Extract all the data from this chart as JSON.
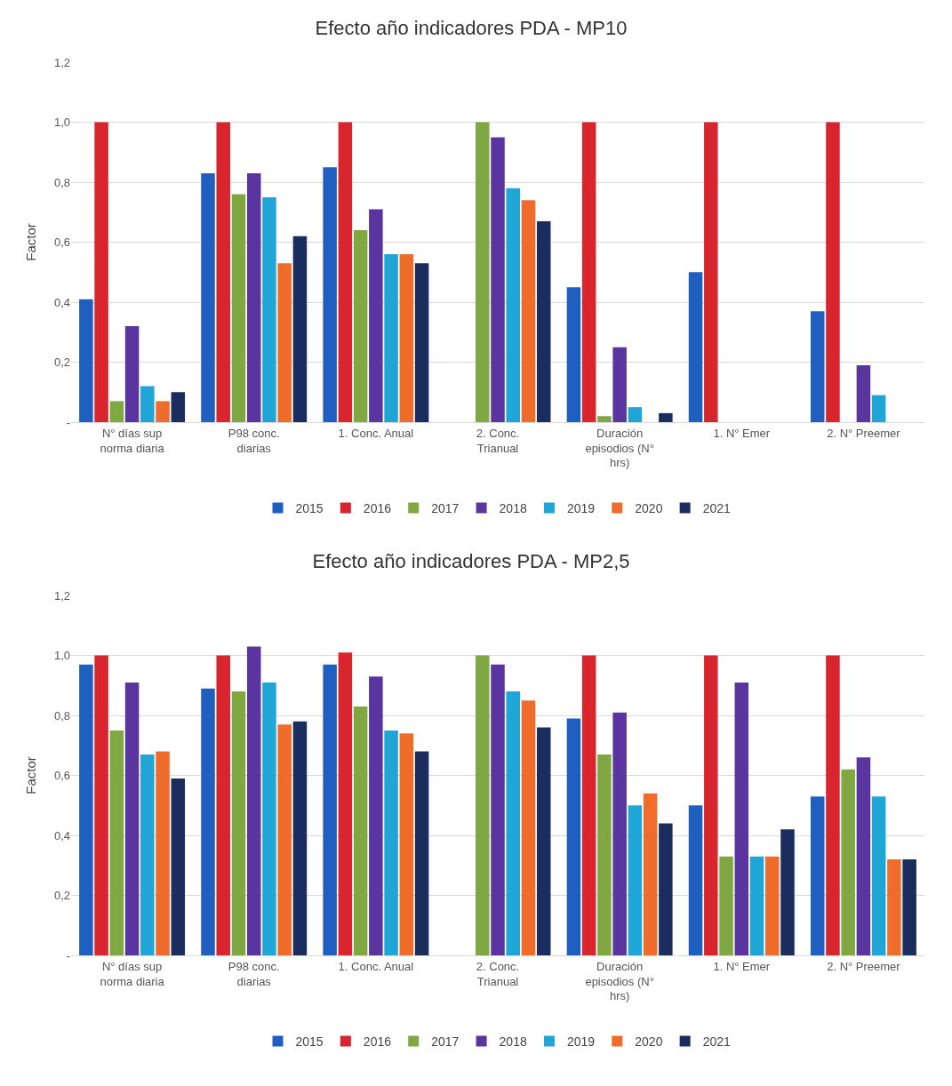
{
  "chart_data": [
    {
      "type": "bar",
      "title": "Efecto año indicadores PDA - MP10",
      "ylabel": "Factor",
      "categories": [
        "N° días sup norma diaria",
        "P98 conc. diarias",
        "1. Conc. Anual",
        "2. Conc. Trianual",
        "Duración episodios (N° hrs)",
        "1. N° Emer",
        "2. N° Preemer"
      ],
      "series": [
        {
          "name": "2015",
          "color": "#1f5fbf",
          "values": [
            0.41,
            0.83,
            0.85,
            null,
            0.45,
            0.5,
            0.37
          ]
        },
        {
          "name": "2016",
          "color": "#d9262e",
          "values": [
            1.0,
            1.0,
            1.0,
            null,
            1.0,
            1.0,
            1.0
          ]
        },
        {
          "name": "2017",
          "color": "#7fa843",
          "values": [
            0.07,
            0.76,
            0.64,
            1.0,
            0.02,
            null,
            null
          ]
        },
        {
          "name": "2018",
          "color": "#5a35a0",
          "values": [
            0.32,
            0.83,
            0.71,
            0.95,
            0.25,
            null,
            0.19
          ]
        },
        {
          "name": "2019",
          "color": "#1fa6d6",
          "values": [
            0.12,
            0.75,
            0.56,
            0.78,
            0.05,
            null,
            0.09
          ]
        },
        {
          "name": "2020",
          "color": "#ef6c2a",
          "values": [
            0.07,
            0.53,
            0.56,
            0.74,
            null,
            null,
            null
          ]
        },
        {
          "name": "2021",
          "color": "#1a2d5e",
          "values": [
            0.1,
            0.62,
            0.53,
            0.67,
            0.03,
            null,
            null
          ]
        }
      ],
      "ylim": [
        0,
        1.2
      ],
      "yticks": [
        {
          "value": 0,
          "label": "-"
        },
        {
          "value": 0.2,
          "label": "0,2"
        },
        {
          "value": 0.4,
          "label": "0,4"
        },
        {
          "value": 0.6,
          "label": "0,6"
        },
        {
          "value": 0.8,
          "label": "0,8"
        },
        {
          "value": 1.0,
          "label": "1,0"
        },
        {
          "value": 1.2,
          "label": "1,2"
        }
      ],
      "grid": "y",
      "legend": "bottom"
    },
    {
      "type": "bar",
      "title": "Efecto año indicadores PDA - MP2,5",
      "ylabel": "Factor",
      "categories": [
        "N° días sup norma diaria",
        "P98 conc. diarias",
        "1. Conc. Anual",
        "2. Conc. Trianual",
        "Duración episodios (N° hrs)",
        "1. N° Emer",
        "2. N° Preemer"
      ],
      "series": [
        {
          "name": "2015",
          "color": "#1f5fbf",
          "values": [
            0.97,
            0.89,
            0.97,
            null,
            0.79,
            0.5,
            0.53
          ]
        },
        {
          "name": "2016",
          "color": "#d9262e",
          "values": [
            1.0,
            1.0,
            1.01,
            null,
            1.0,
            1.0,
            1.0
          ]
        },
        {
          "name": "2017",
          "color": "#7fa843",
          "values": [
            0.75,
            0.88,
            0.83,
            1.0,
            0.67,
            0.33,
            0.62
          ]
        },
        {
          "name": "2018",
          "color": "#5a35a0",
          "values": [
            0.91,
            1.03,
            0.93,
            0.97,
            0.81,
            0.91,
            0.66
          ]
        },
        {
          "name": "2019",
          "color": "#1fa6d6",
          "values": [
            0.67,
            0.91,
            0.75,
            0.88,
            0.5,
            0.33,
            0.53
          ]
        },
        {
          "name": "2020",
          "color": "#ef6c2a",
          "values": [
            0.68,
            0.77,
            0.74,
            0.85,
            0.54,
            0.33,
            0.32
          ]
        },
        {
          "name": "2021",
          "color": "#1a2d5e",
          "values": [
            0.59,
            0.78,
            0.68,
            0.76,
            0.44,
            0.42,
            0.32
          ]
        }
      ],
      "ylim": [
        0,
        1.2
      ],
      "yticks": [
        {
          "value": 0,
          "label": "-"
        },
        {
          "value": 0.2,
          "label": "0,2"
        },
        {
          "value": 0.4,
          "label": "0,4"
        },
        {
          "value": 0.6,
          "label": "0,6"
        },
        {
          "value": 0.8,
          "label": "0,8"
        },
        {
          "value": 1.0,
          "label": "1,0"
        },
        {
          "value": 1.2,
          "label": "1,2"
        }
      ],
      "grid": "y",
      "legend": "bottom"
    }
  ]
}
